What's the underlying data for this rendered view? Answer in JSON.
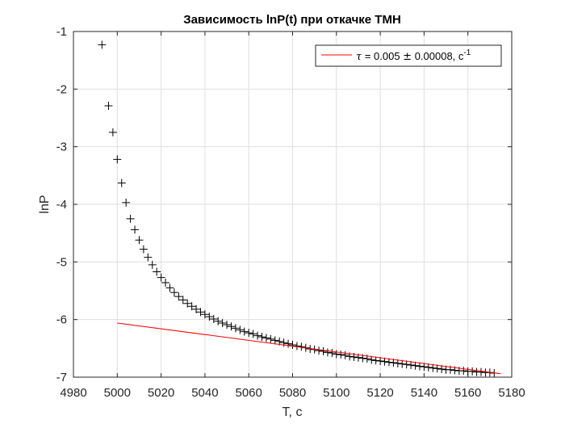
{
  "chart_data": {
    "type": "scatter",
    "title": "Зависимость lnP(t) при откачке ТМН",
    "xlabel": "T, c",
    "ylabel": "lnP",
    "xlim": [
      4980,
      5180
    ],
    "ylim": [
      -7,
      -1
    ],
    "xticks": [
      4980,
      5000,
      5020,
      5040,
      5060,
      5080,
      5100,
      5120,
      5140,
      5160,
      5180
    ],
    "yticks": [
      -1,
      -2,
      -3,
      -4,
      -5,
      -6,
      -7
    ],
    "grid": true,
    "legend_position": "top-right",
    "legend": {
      "symbol": "τ",
      "text": " = 0.005 ",
      "pm": "±",
      "text2": " 0.00008, c",
      "sup": "-1"
    },
    "series": [
      {
        "marker": "plus",
        "color": "#000000",
        "x": [
          4993,
          4996,
          4998,
          5000,
          5002,
          5004,
          5006,
          5008,
          5010,
          5012,
          5014,
          5016,
          5018,
          5020,
          5022,
          5024,
          5026,
          5028,
          5030,
          5032,
          5034,
          5036,
          5038,
          5040,
          5042,
          5044,
          5046,
          5048,
          5050,
          5052,
          5054,
          5056,
          5058,
          5060,
          5062,
          5064,
          5066,
          5068,
          5070,
          5072,
          5074,
          5076,
          5078,
          5080,
          5082,
          5084,
          5086,
          5088,
          5090,
          5092,
          5094,
          5096,
          5098,
          5100,
          5102,
          5104,
          5106,
          5108,
          5110,
          5112,
          5114,
          5116,
          5118,
          5120,
          5122,
          5124,
          5126,
          5128,
          5130,
          5132,
          5134,
          5136,
          5138,
          5140,
          5142,
          5144,
          5146,
          5148,
          5150,
          5152,
          5154,
          5156,
          5158,
          5160,
          5162,
          5164,
          5166,
          5168,
          5170,
          5172
        ],
        "y": [
          -1.23,
          -2.29,
          -2.75,
          -3.22,
          -3.63,
          -3.97,
          -4.25,
          -4.44,
          -4.62,
          -4.78,
          -4.92,
          -5.05,
          -5.17,
          -5.27,
          -5.36,
          -5.45,
          -5.53,
          -5.6,
          -5.66,
          -5.72,
          -5.77,
          -5.82,
          -5.87,
          -5.91,
          -5.95,
          -5.99,
          -6.03,
          -6.06,
          -6.09,
          -6.12,
          -6.15,
          -6.18,
          -6.21,
          -6.23,
          -6.25,
          -6.28,
          -6.3,
          -6.32,
          -6.34,
          -6.36,
          -6.38,
          -6.4,
          -6.42,
          -6.44,
          -6.46,
          -6.47,
          -6.49,
          -6.51,
          -6.52,
          -6.54,
          -6.55,
          -6.57,
          -6.58,
          -6.6,
          -6.61,
          -6.62,
          -6.64,
          -6.65,
          -6.66,
          -6.67,
          -6.68,
          -6.7,
          -6.71,
          -6.72,
          -6.73,
          -6.74,
          -6.75,
          -6.76,
          -6.77,
          -6.78,
          -6.79,
          -6.8,
          -6.81,
          -6.82,
          -6.83,
          -6.84,
          -6.85,
          -6.86,
          -6.87,
          -6.87,
          -6.88,
          -6.89,
          -6.89,
          -6.9,
          -6.9,
          -6.91,
          -6.91,
          -6.92,
          -6.92,
          -6.93
        ]
      },
      {
        "type": "line",
        "color": "#ff0000",
        "x": [
          5000,
          5175
        ],
        "y": [
          -6.06,
          -6.94
        ]
      }
    ]
  }
}
